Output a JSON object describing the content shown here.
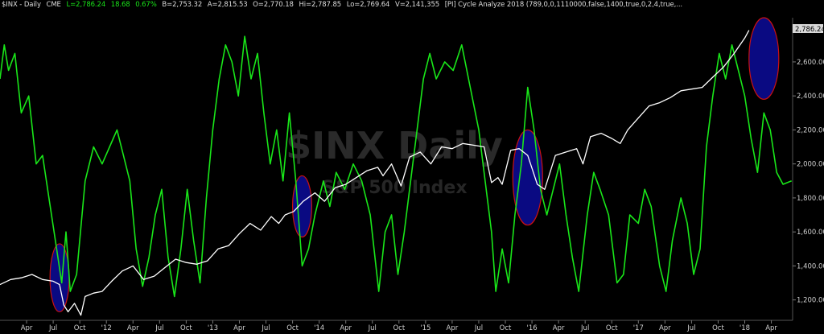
{
  "header": {
    "symbol": "$INX - Daily",
    "exchange": "CME",
    "last": "L=2,786.24",
    "change": "18.68",
    "change_pct": "0.67%",
    "bid": "B=2,753.32",
    "ask": "A=2,815.53",
    "open": "O=2,770.18",
    "high": "Hi=2,787.85",
    "low": "Lo=2,769.64",
    "volume": "V=2,141,355",
    "indicator": "[PI] Cycle Analyze 2018 (789,0,0,1110000,false,1400,true,0,2,4,true,..."
  },
  "watermark": {
    "title": "$INX Daily",
    "subtitle": "S&P 500 Index"
  },
  "last_price_tag": "2,786.24",
  "colors": {
    "background": "#000000",
    "price_line": "#ffffff",
    "cycle_line": "#19e619",
    "highlight_fill": "#0a0a82",
    "highlight_stroke": "#cc1111"
  },
  "chart_data": {
    "type": "line",
    "x_tick_labels": [
      "Apr",
      "Jul",
      "Oct",
      "'12",
      "Apr",
      "Jul",
      "Oct",
      "'13",
      "Apr",
      "Jul",
      "Oct",
      "'14",
      "Apr",
      "Jul",
      "Oct",
      "'15",
      "Apr",
      "Jul",
      "Oct",
      "'16",
      "Apr",
      "Jul",
      "Oct",
      "'17",
      "Apr",
      "Jul",
      "Oct",
      "'18",
      "Apr"
    ],
    "y_tick_labels": [
      "1,200.00",
      "1,400.00",
      "1,600.00",
      "1,800.00",
      "2,000.00",
      "2,200.00",
      "2,400.00",
      "2,600.00"
    ],
    "ylim": [
      1080,
      2860
    ],
    "x_range": [
      2011.0,
      2018.45
    ],
    "series": [
      {
        "name": "$INX",
        "role": "price",
        "points": [
          [
            2011.0,
            1290
          ],
          [
            2011.1,
            1320
          ],
          [
            2011.2,
            1330
          ],
          [
            2011.3,
            1350
          ],
          [
            2011.4,
            1320
          ],
          [
            2011.5,
            1310
          ],
          [
            2011.56,
            1290
          ],
          [
            2011.6,
            1170
          ],
          [
            2011.64,
            1130
          ],
          [
            2011.7,
            1180
          ],
          [
            2011.76,
            1110
          ],
          [
            2011.8,
            1220
          ],
          [
            2011.88,
            1240
          ],
          [
            2011.96,
            1250
          ],
          [
            2012.05,
            1310
          ],
          [
            2012.15,
            1370
          ],
          [
            2012.25,
            1400
          ],
          [
            2012.35,
            1320
          ],
          [
            2012.45,
            1340
          ],
          [
            2012.55,
            1390
          ],
          [
            2012.65,
            1440
          ],
          [
            2012.75,
            1420
          ],
          [
            2012.85,
            1410
          ],
          [
            2012.95,
            1430
          ],
          [
            2013.05,
            1500
          ],
          [
            2013.15,
            1520
          ],
          [
            2013.25,
            1590
          ],
          [
            2013.35,
            1650
          ],
          [
            2013.45,
            1610
          ],
          [
            2013.55,
            1690
          ],
          [
            2013.62,
            1650
          ],
          [
            2013.68,
            1700
          ],
          [
            2013.76,
            1720
          ],
          [
            2013.85,
            1780
          ],
          [
            2013.96,
            1830
          ],
          [
            2014.05,
            1780
          ],
          [
            2014.15,
            1860
          ],
          [
            2014.25,
            1880
          ],
          [
            2014.35,
            1920
          ],
          [
            2014.45,
            1960
          ],
          [
            2014.55,
            1980
          ],
          [
            2014.6,
            1930
          ],
          [
            2014.68,
            2000
          ],
          [
            2014.77,
            1870
          ],
          [
            2014.85,
            2040
          ],
          [
            2014.95,
            2070
          ],
          [
            2015.05,
            2000
          ],
          [
            2015.15,
            2100
          ],
          [
            2015.25,
            2090
          ],
          [
            2015.35,
            2120
          ],
          [
            2015.45,
            2110
          ],
          [
            2015.55,
            2100
          ],
          [
            2015.62,
            1890
          ],
          [
            2015.68,
            1920
          ],
          [
            2015.72,
            1880
          ],
          [
            2015.8,
            2080
          ],
          [
            2015.88,
            2090
          ],
          [
            2015.96,
            2050
          ],
          [
            2016.05,
            1880
          ],
          [
            2016.12,
            1850
          ],
          [
            2016.22,
            2050
          ],
          [
            2016.32,
            2070
          ],
          [
            2016.42,
            2090
          ],
          [
            2016.48,
            2000
          ],
          [
            2016.55,
            2160
          ],
          [
            2016.65,
            2180
          ],
          [
            2016.75,
            2150
          ],
          [
            2016.83,
            2120
          ],
          [
            2016.9,
            2200
          ],
          [
            2017.0,
            2270
          ],
          [
            2017.1,
            2340
          ],
          [
            2017.2,
            2360
          ],
          [
            2017.3,
            2390
          ],
          [
            2017.4,
            2430
          ],
          [
            2017.5,
            2440
          ],
          [
            2017.6,
            2450
          ],
          [
            2017.7,
            2510
          ],
          [
            2017.8,
            2570
          ],
          [
            2017.9,
            2650
          ],
          [
            2018.0,
            2740
          ],
          [
            2018.04,
            2786
          ]
        ]
      },
      {
        "name": "Cycle Analyze 2018",
        "role": "cycle",
        "points": [
          [
            2011.0,
            2500
          ],
          [
            2011.04,
            2700
          ],
          [
            2011.08,
            2550
          ],
          [
            2011.14,
            2650
          ],
          [
            2011.2,
            2300
          ],
          [
            2011.27,
            2400
          ],
          [
            2011.34,
            2000
          ],
          [
            2011.4,
            2050
          ],
          [
            2011.46,
            1800
          ],
          [
            2011.52,
            1550
          ],
          [
            2011.58,
            1300
          ],
          [
            2011.62,
            1600
          ],
          [
            2011.66,
            1250
          ],
          [
            2011.72,
            1350
          ],
          [
            2011.8,
            1900
          ],
          [
            2011.88,
            2100
          ],
          [
            2011.96,
            2000
          ],
          [
            2012.03,
            2100
          ],
          [
            2012.1,
            2200
          ],
          [
            2012.16,
            2050
          ],
          [
            2012.22,
            1900
          ],
          [
            2012.28,
            1500
          ],
          [
            2012.34,
            1280
          ],
          [
            2012.4,
            1450
          ],
          [
            2012.46,
            1700
          ],
          [
            2012.52,
            1850
          ],
          [
            2012.58,
            1450
          ],
          [
            2012.64,
            1220
          ],
          [
            2012.7,
            1500
          ],
          [
            2012.76,
            1850
          ],
          [
            2012.82,
            1550
          ],
          [
            2012.88,
            1300
          ],
          [
            2012.94,
            1800
          ],
          [
            2013.0,
            2200
          ],
          [
            2013.06,
            2500
          ],
          [
            2013.12,
            2700
          ],
          [
            2013.18,
            2600
          ],
          [
            2013.24,
            2400
          ],
          [
            2013.3,
            2750
          ],
          [
            2013.36,
            2500
          ],
          [
            2013.42,
            2650
          ],
          [
            2013.48,
            2300
          ],
          [
            2013.54,
            2000
          ],
          [
            2013.6,
            2200
          ],
          [
            2013.66,
            1900
          ],
          [
            2013.72,
            2300
          ],
          [
            2013.78,
            1900
          ],
          [
            2013.84,
            1400
          ],
          [
            2013.9,
            1500
          ],
          [
            2013.96,
            1700
          ],
          [
            2014.04,
            1900
          ],
          [
            2014.1,
            1750
          ],
          [
            2014.16,
            1950
          ],
          [
            2014.24,
            1850
          ],
          [
            2014.32,
            2000
          ],
          [
            2014.4,
            1900
          ],
          [
            2014.48,
            1700
          ],
          [
            2014.56,
            1250
          ],
          [
            2014.62,
            1600
          ],
          [
            2014.68,
            1700
          ],
          [
            2014.74,
            1350
          ],
          [
            2014.8,
            1600
          ],
          [
            2014.86,
            1900
          ],
          [
            2014.92,
            2200
          ],
          [
            2014.98,
            2500
          ],
          [
            2015.04,
            2650
          ],
          [
            2015.1,
            2500
          ],
          [
            2015.18,
            2600
          ],
          [
            2015.26,
            2550
          ],
          [
            2015.34,
            2700
          ],
          [
            2015.42,
            2450
          ],
          [
            2015.5,
            2200
          ],
          [
            2015.56,
            1900
          ],
          [
            2015.62,
            1600
          ],
          [
            2015.66,
            1250
          ],
          [
            2015.72,
            1500
          ],
          [
            2015.78,
            1300
          ],
          [
            2015.84,
            1700
          ],
          [
            2015.9,
            2000
          ],
          [
            2015.96,
            2450
          ],
          [
            2016.02,
            2200
          ],
          [
            2016.08,
            1850
          ],
          [
            2016.14,
            1700
          ],
          [
            2016.2,
            1850
          ],
          [
            2016.26,
            2000
          ],
          [
            2016.32,
            1700
          ],
          [
            2016.38,
            1450
          ],
          [
            2016.44,
            1250
          ],
          [
            2016.52,
            1700
          ],
          [
            2016.58,
            1950
          ],
          [
            2016.64,
            1850
          ],
          [
            2016.72,
            1700
          ],
          [
            2016.8,
            1300
          ],
          [
            2016.86,
            1350
          ],
          [
            2016.92,
            1700
          ],
          [
            2017.0,
            1650
          ],
          [
            2017.06,
            1850
          ],
          [
            2017.12,
            1750
          ],
          [
            2017.2,
            1400
          ],
          [
            2017.26,
            1250
          ],
          [
            2017.32,
            1550
          ],
          [
            2017.4,
            1800
          ],
          [
            2017.46,
            1650
          ],
          [
            2017.52,
            1350
          ],
          [
            2017.58,
            1500
          ],
          [
            2017.64,
            2100
          ],
          [
            2017.7,
            2400
          ],
          [
            2017.76,
            2650
          ],
          [
            2017.82,
            2500
          ],
          [
            2017.88,
            2700
          ],
          [
            2017.94,
            2550
          ],
          [
            2018.0,
            2400
          ],
          [
            2018.06,
            2150
          ],
          [
            2018.12,
            1950
          ],
          [
            2018.18,
            2300
          ],
          [
            2018.24,
            2200
          ],
          [
            2018.3,
            1950
          ],
          [
            2018.36,
            1880
          ],
          [
            2018.44,
            1900
          ]
        ]
      }
    ],
    "highlights": [
      {
        "x_center": 2011.56,
        "y_center": 1330,
        "x_halfwidth": 0.09,
        "y_halfwidth": 200
      },
      {
        "x_center": 2013.84,
        "y_center": 1750,
        "x_halfwidth": 0.09,
        "y_halfwidth": 180
      },
      {
        "x_center": 2015.96,
        "y_center": 1920,
        "x_halfwidth": 0.14,
        "y_halfwidth": 280
      },
      {
        "x_center": 2018.18,
        "y_center": 2620,
        "x_halfwidth": 0.14,
        "y_halfwidth": 240
      }
    ]
  }
}
